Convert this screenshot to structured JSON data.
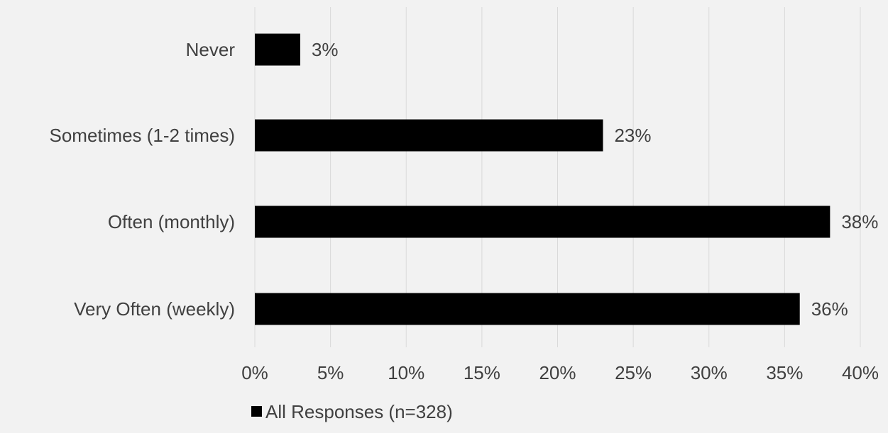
{
  "chart_data": {
    "type": "bar",
    "orientation": "horizontal",
    "categories": [
      "Never",
      "Sometimes (1-2 times)",
      "Often (monthly)",
      "Very Often (weekly)"
    ],
    "series": [
      {
        "name": "All Responses (n=328)",
        "values": [
          3,
          23,
          38,
          36
        ],
        "color": "#000000"
      }
    ],
    "data_labels": [
      "3%",
      "23%",
      "38%",
      "36%"
    ],
    "xlim": [
      0,
      40
    ],
    "x_ticks": [
      0,
      5,
      10,
      15,
      20,
      25,
      30,
      35,
      40
    ],
    "x_tick_labels": [
      "0%",
      "5%",
      "10%",
      "15%",
      "20%",
      "25%",
      "30%",
      "35%",
      "40%"
    ],
    "grid": true,
    "legend_position": "bottom",
    "title": "",
    "xlabel": "",
    "ylabel": ""
  },
  "colors": {
    "background": "#f2f2f2",
    "bar": "#000000",
    "gridline": "#d9d9d9",
    "text": "#404040"
  }
}
